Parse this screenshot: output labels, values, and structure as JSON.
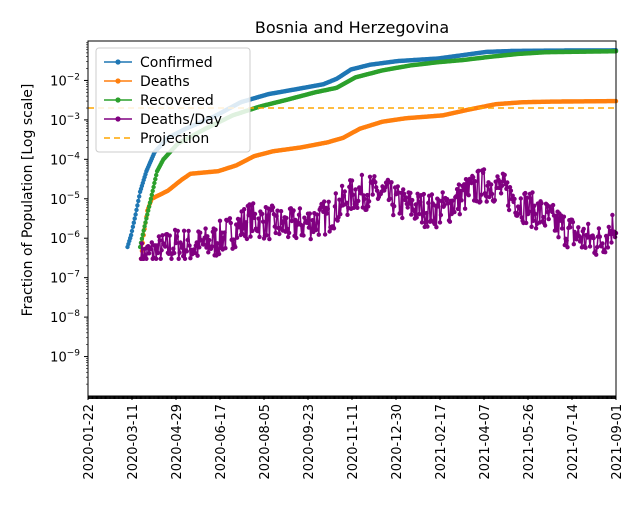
{
  "chart_data": {
    "type": "line",
    "title": "Bosnia and Herzegovina",
    "xlabel": "",
    "ylabel": "Fraction of Population [Log scale]",
    "yscale": "log",
    "ylim": [
      1e-10,
      0.1
    ],
    "xlim": [
      "2020-01-22",
      "2021-09-01"
    ],
    "x_ticks": [
      "2020-01-22",
      "2020-03-11",
      "2020-04-29",
      "2020-06-17",
      "2020-08-05",
      "2020-09-23",
      "2020-11-11",
      "2020-12-30",
      "2021-02-17",
      "2021-04-07",
      "2021-05-26",
      "2021-07-14",
      "2021-09-01"
    ],
    "y_ticks": [
      {
        "value": 1e-09,
        "base": "10",
        "exp": "−9"
      },
      {
        "value": 1e-08,
        "base": "10",
        "exp": "−8"
      },
      {
        "value": 1e-07,
        "base": "10",
        "exp": "−7"
      },
      {
        "value": 1e-06,
        "base": "10",
        "exp": "−6"
      },
      {
        "value": 1e-05,
        "base": "10",
        "exp": "−5"
      },
      {
        "value": 0.0001,
        "base": "10",
        "exp": "−4"
      },
      {
        "value": 0.001,
        "base": "10",
        "exp": "−3"
      },
      {
        "value": 0.01,
        "base": "10",
        "exp": "−2"
      }
    ],
    "legend_position": "top-left",
    "series": [
      {
        "name": "Confirmed",
        "color": "#1f77b4",
        "marker": "dot",
        "points": [
          [
            "2020-03-06",
            6e-07
          ],
          [
            "2020-03-10",
            1.2e-06
          ],
          [
            "2020-03-15",
            4e-06
          ],
          [
            "2020-03-20",
            1.5e-05
          ],
          [
            "2020-03-27",
            5e-05
          ],
          [
            "2020-04-05",
            0.00015
          ],
          [
            "2020-04-20",
            0.00035
          ],
          [
            "2020-05-10",
            0.0006
          ],
          [
            "2020-06-10",
            0.0012
          ],
          [
            "2020-07-10",
            0.0028
          ],
          [
            "2020-08-10",
            0.0045
          ],
          [
            "2020-09-10",
            0.006
          ],
          [
            "2020-10-10",
            0.008
          ],
          [
            "2020-10-25",
            0.011
          ],
          [
            "2020-11-10",
            0.019
          ],
          [
            "2020-12-01",
            0.025
          ],
          [
            "2021-01-01",
            0.031
          ],
          [
            "2021-02-15",
            0.036
          ],
          [
            "2021-03-15",
            0.044
          ],
          [
            "2021-04-10",
            0.053
          ],
          [
            "2021-05-10",
            0.056
          ],
          [
            "2021-06-15",
            0.057
          ],
          [
            "2021-09-01",
            0.058
          ]
        ]
      },
      {
        "name": "Deaths",
        "color": "#ff7f0e",
        "marker": "dot",
        "points": [
          [
            "2020-03-21",
            3e-07
          ],
          [
            "2020-03-24",
            1.2e-06
          ],
          [
            "2020-03-28",
            5e-06
          ],
          [
            "2020-04-02",
            1e-05
          ],
          [
            "2020-04-20",
            1.6e-05
          ],
          [
            "2020-05-05",
            3e-05
          ],
          [
            "2020-05-15",
            4.3e-05
          ],
          [
            "2020-06-15",
            5e-05
          ],
          [
            "2020-07-05",
            7e-05
          ],
          [
            "2020-07-25",
            0.00012
          ],
          [
            "2020-08-15",
            0.00016
          ],
          [
            "2020-09-15",
            0.0002
          ],
          [
            "2020-10-15",
            0.00027
          ],
          [
            "2020-11-01",
            0.00035
          ],
          [
            "2020-11-20",
            0.0006
          ],
          [
            "2020-12-15",
            0.0009
          ],
          [
            "2021-01-10",
            0.0011
          ],
          [
            "2021-02-20",
            0.0013
          ],
          [
            "2021-03-20",
            0.0018
          ],
          [
            "2021-04-20",
            0.0025
          ],
          [
            "2021-05-20",
            0.0028
          ],
          [
            "2021-06-20",
            0.0029
          ],
          [
            "2021-09-01",
            0.003
          ]
        ]
      },
      {
        "name": "Recovered",
        "color": "#2ca02c",
        "marker": "dot",
        "points": [
          [
            "2020-03-20",
            6e-07
          ],
          [
            "2020-03-25",
            2e-06
          ],
          [
            "2020-04-01",
            1e-05
          ],
          [
            "2020-04-08",
            5e-05
          ],
          [
            "2020-04-15",
            0.0001
          ],
          [
            "2020-05-01",
            0.00025
          ],
          [
            "2020-06-01",
            0.0006
          ],
          [
            "2020-07-01",
            0.0013
          ],
          [
            "2020-08-01",
            0.0022
          ],
          [
            "2020-09-01",
            0.0033
          ],
          [
            "2020-10-01",
            0.005
          ],
          [
            "2020-10-25",
            0.0065
          ],
          [
            "2020-11-15",
            0.012
          ],
          [
            "2020-12-15",
            0.018
          ],
          [
            "2021-01-15",
            0.024
          ],
          [
            "2021-02-15",
            0.029
          ],
          [
            "2021-03-15",
            0.033
          ],
          [
            "2021-04-15",
            0.04
          ],
          [
            "2021-05-15",
            0.047
          ],
          [
            "2021-06-15",
            0.052
          ],
          [
            "2021-09-01",
            0.055
          ]
        ]
      },
      {
        "name": "Deaths/Day",
        "color": "#800080",
        "marker": "dot",
        "style": "noisy",
        "points": [
          [
            "2020-03-21",
            3e-07
          ],
          [
            "2020-04-01",
            4e-07
          ],
          [
            "2020-04-15",
            5e-07
          ],
          [
            "2020-05-01",
            7e-07
          ],
          [
            "2020-05-20",
            6e-07
          ],
          [
            "2020-06-10",
            8e-07
          ],
          [
            "2020-07-01",
            1.5e-06
          ],
          [
            "2020-07-20",
            3e-06
          ],
          [
            "2020-08-10",
            2.5e-06
          ],
          [
            "2020-09-01",
            2e-06
          ],
          [
            "2020-09-25",
            2.5e-06
          ],
          [
            "2020-10-15",
            3.5e-06
          ],
          [
            "2020-11-01",
            8e-06
          ],
          [
            "2020-11-15",
            1.4e-05
          ],
          [
            "2020-12-01",
            1.5e-05
          ],
          [
            "2020-12-15",
            1.3e-05
          ],
          [
            "2021-01-01",
            8e-06
          ],
          [
            "2021-01-20",
            6e-06
          ],
          [
            "2021-02-10",
            5e-06
          ],
          [
            "2021-02-25",
            6e-06
          ],
          [
            "2021-03-15",
            1.2e-05
          ],
          [
            "2021-04-01",
            2e-05
          ],
          [
            "2021-04-15",
            2.4e-05
          ],
          [
            "2021-05-01",
            1.5e-05
          ],
          [
            "2021-05-20",
            7e-06
          ],
          [
            "2021-06-10",
            4e-06
          ],
          [
            "2021-07-01",
            2e-06
          ],
          [
            "2021-07-25",
            1e-06
          ],
          [
            "2021-08-15",
            8e-07
          ],
          [
            "2021-09-01",
            2.5e-06
          ]
        ]
      },
      {
        "name": "Projection",
        "color": "#ffa500",
        "style": "dashed",
        "points": [
          [
            "2020-01-22",
            0.002
          ],
          [
            "2021-09-01",
            0.002
          ]
        ]
      }
    ]
  }
}
